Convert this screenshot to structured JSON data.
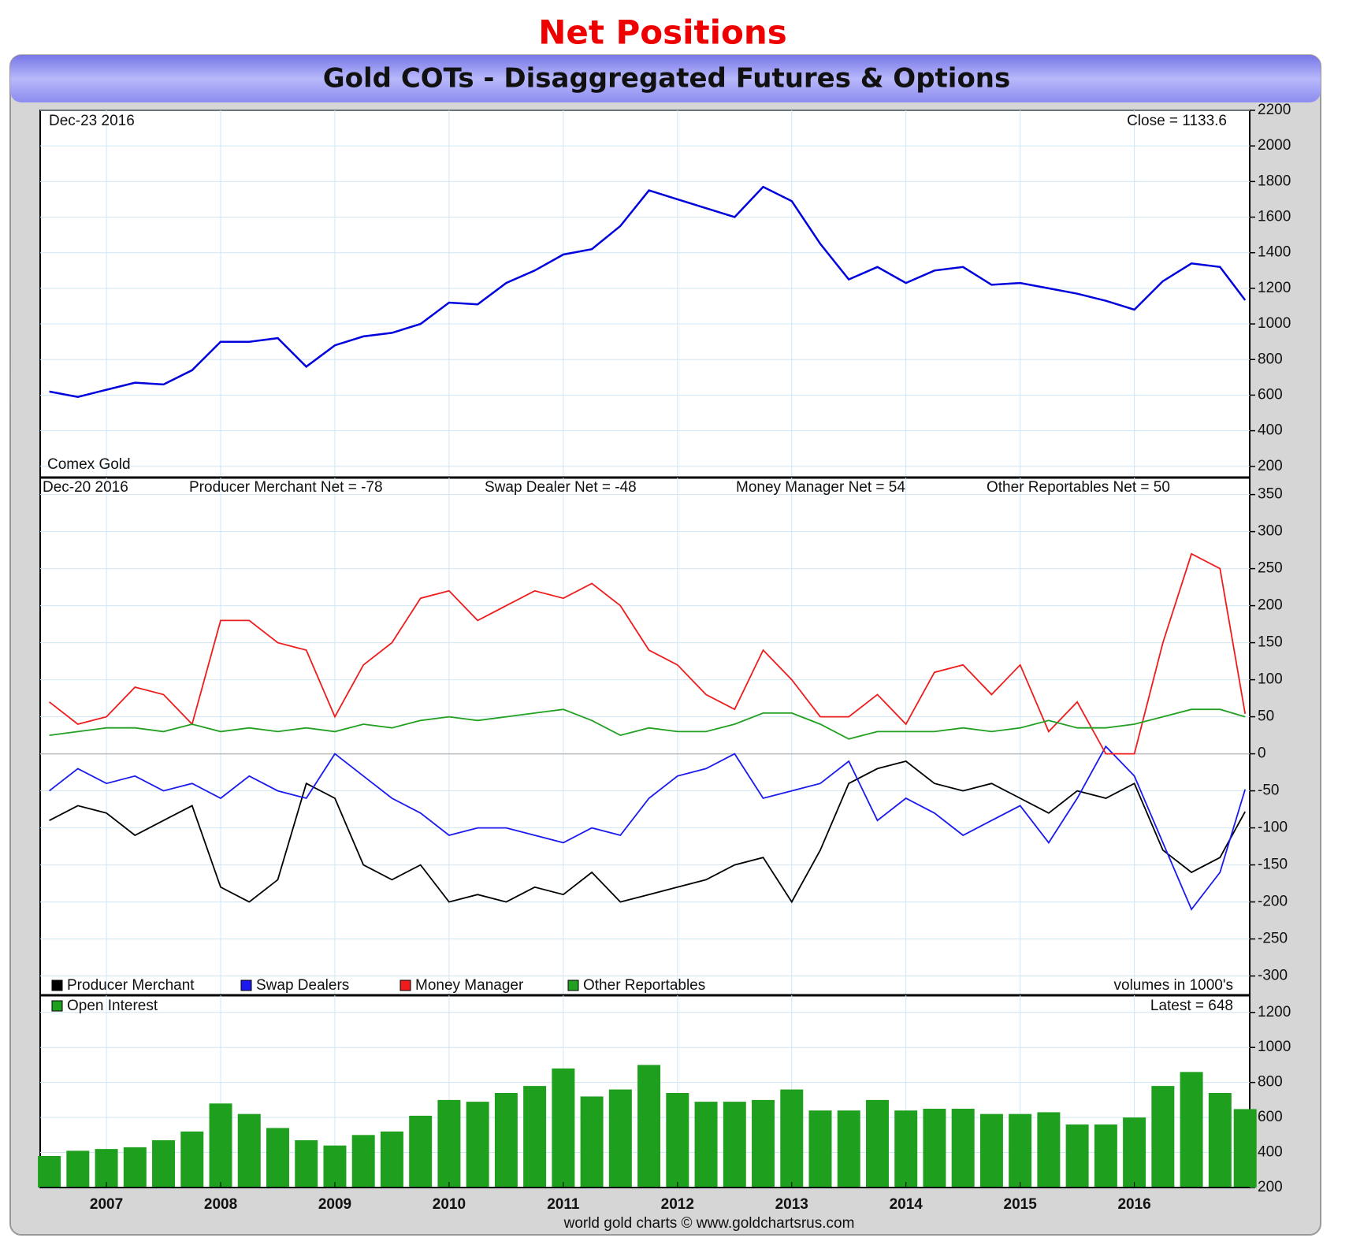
{
  "chart_data": [
    {
      "type": "line",
      "title": "Net Positions",
      "subtitle": "Gold COTs - Disaggregated Futures & Options",
      "annotations": [
        "Dec-23  2016",
        "Close = 1133.6"
      ],
      "x": [
        2006.5,
        2006.75,
        2007,
        2007.25,
        2007.5,
        2007.75,
        2008,
        2008.25,
        2008.5,
        2008.75,
        2009,
        2009.25,
        2009.5,
        2009.75,
        2010,
        2010.25,
        2010.5,
        2010.75,
        2011,
        2011.25,
        2011.5,
        2011.75,
        2012,
        2012.25,
        2012.5,
        2012.75,
        2013,
        2013.25,
        2013.5,
        2013.75,
        2014,
        2014.25,
        2014.5,
        2014.75,
        2015,
        2015.25,
        2015.5,
        2015.75,
        2016,
        2016.25,
        2016.5,
        2016.75,
        2016.97
      ],
      "xlim": [
        2006.42,
        2017.01
      ],
      "series": [
        {
          "name": "Comex Gold",
          "color": "#0000dd",
          "values": [
            620,
            590,
            630,
            670,
            660,
            740,
            900,
            900,
            920,
            760,
            880,
            930,
            950,
            1000,
            1120,
            1110,
            1230,
            1300,
            1390,
            1420,
            1550,
            1750,
            1700,
            1650,
            1600,
            1770,
            1690,
            1450,
            1250,
            1320,
            1230,
            1300,
            1320,
            1220,
            1230,
            1200,
            1170,
            1130,
            1080,
            1240,
            1340,
            1320,
            1133.6
          ]
        }
      ],
      "ylim": [
        137,
        2200
      ],
      "yticks": [
        200,
        400,
        600,
        800,
        1000,
        1200,
        1400,
        1600,
        1800,
        2000,
        2200
      ],
      "grid": true
    },
    {
      "type": "line",
      "annotations": [
        "Dec-20  2016",
        "Producer Merchant Net = -78",
        "Swap Dealer Net = -48",
        "Money Manager Net = 54",
        "Other Reportables Net = 50",
        "volumes in 1000's"
      ],
      "x": [
        2006.5,
        2006.75,
        2007,
        2007.25,
        2007.5,
        2007.75,
        2008,
        2008.25,
        2008.5,
        2008.75,
        2009,
        2009.25,
        2009.5,
        2009.75,
        2010,
        2010.25,
        2010.5,
        2010.75,
        2011,
        2011.25,
        2011.5,
        2011.75,
        2012,
        2012.25,
        2012.5,
        2012.75,
        2013,
        2013.25,
        2013.5,
        2013.75,
        2014,
        2014.25,
        2014.5,
        2014.75,
        2015,
        2015.25,
        2015.5,
        2015.75,
        2016,
        2016.25,
        2016.5,
        2016.75,
        2016.97
      ],
      "xlim": [
        2006.42,
        2017.01
      ],
      "series": [
        {
          "name": "Producer Merchant",
          "color": "#000000",
          "values": [
            -90,
            -70,
            -80,
            -110,
            -90,
            -70,
            -180,
            -200,
            -170,
            -40,
            -60,
            -150,
            -170,
            -150,
            -200,
            -190,
            -200,
            -180,
            -190,
            -160,
            -200,
            -190,
            -180,
            -170,
            -150,
            -140,
            -200,
            -130,
            -40,
            -20,
            -10,
            -40,
            -50,
            -40,
            -60,
            -80,
            -50,
            -60,
            -40,
            -130,
            -160,
            -140,
            -78
          ]
        },
        {
          "name": "Swap Dealers",
          "color": "#1a1aee",
          "values": [
            -50,
            -20,
            -40,
            -30,
            -50,
            -40,
            -60,
            -30,
            -50,
            -60,
            0,
            -30,
            -60,
            -80,
            -110,
            -100,
            -100,
            -110,
            -120,
            -100,
            -110,
            -60,
            -30,
            -20,
            0,
            -60,
            -50,
            -40,
            -10,
            -90,
            -60,
            -80,
            -110,
            -90,
            -70,
            -120,
            -60,
            10,
            -30,
            -120,
            -210,
            -160,
            -48
          ]
        },
        {
          "name": "Money Manager",
          "color": "#ee1c1c",
          "values": [
            70,
            40,
            50,
            90,
            80,
            40,
            180,
            180,
            150,
            140,
            50,
            120,
            150,
            210,
            220,
            180,
            200,
            220,
            210,
            230,
            200,
            140,
            120,
            80,
            60,
            140,
            100,
            50,
            50,
            80,
            40,
            110,
            120,
            80,
            120,
            30,
            70,
            0,
            0,
            150,
            270,
            250,
            54
          ]
        },
        {
          "name": "Other Reportables",
          "color": "#22a022",
          "values": [
            25,
            30,
            35,
            35,
            30,
            40,
            30,
            35,
            30,
            35,
            30,
            40,
            35,
            45,
            50,
            45,
            50,
            55,
            60,
            45,
            25,
            35,
            30,
            30,
            40,
            55,
            55,
            40,
            20,
            30,
            30,
            30,
            35,
            30,
            35,
            45,
            35,
            35,
            40,
            50,
            60,
            60,
            50
          ]
        }
      ],
      "ylim": [
        -326,
        373
      ],
      "yticks": [
        -300,
        -250,
        -200,
        -150,
        -100,
        -50,
        0,
        50,
        100,
        150,
        200,
        250,
        300,
        350
      ],
      "grid": true
    },
    {
      "type": "bar",
      "annotations": [
        "Latest = 648"
      ],
      "footer": "world gold charts © www.goldchartsrus.com",
      "x": [
        2006.5,
        2006.75,
        2007,
        2007.25,
        2007.5,
        2007.75,
        2008,
        2008.25,
        2008.5,
        2008.75,
        2009,
        2009.25,
        2009.5,
        2009.75,
        2010,
        2010.25,
        2010.5,
        2010.75,
        2011,
        2011.25,
        2011.5,
        2011.75,
        2012,
        2012.25,
        2012.5,
        2012.75,
        2013,
        2013.25,
        2013.5,
        2013.75,
        2014,
        2014.25,
        2014.5,
        2014.75,
        2015,
        2015.25,
        2015.5,
        2015.75,
        2016,
        2016.25,
        2016.5,
        2016.75,
        2016.97
      ],
      "xlim": [
        2006.42,
        2017.01
      ],
      "xticks": [
        2007,
        2008,
        2009,
        2010,
        2011,
        2012,
        2013,
        2014,
        2015,
        2016
      ],
      "series": [
        {
          "name": "Open Interest",
          "color": "#1ea01e",
          "values": [
            380,
            410,
            420,
            430,
            470,
            520,
            680,
            620,
            540,
            470,
            440,
            500,
            520,
            610,
            700,
            690,
            740,
            780,
            880,
            720,
            760,
            900,
            740,
            690,
            690,
            700,
            760,
            640,
            640,
            700,
            640,
            650,
            650,
            620,
            620,
            630,
            560,
            560,
            600,
            780,
            860,
            740,
            648
          ]
        }
      ],
      "ylim": [
        200,
        1298
      ],
      "yticks": [
        200,
        400,
        600,
        800,
        1000,
        1200
      ],
      "grid": true
    }
  ]
}
